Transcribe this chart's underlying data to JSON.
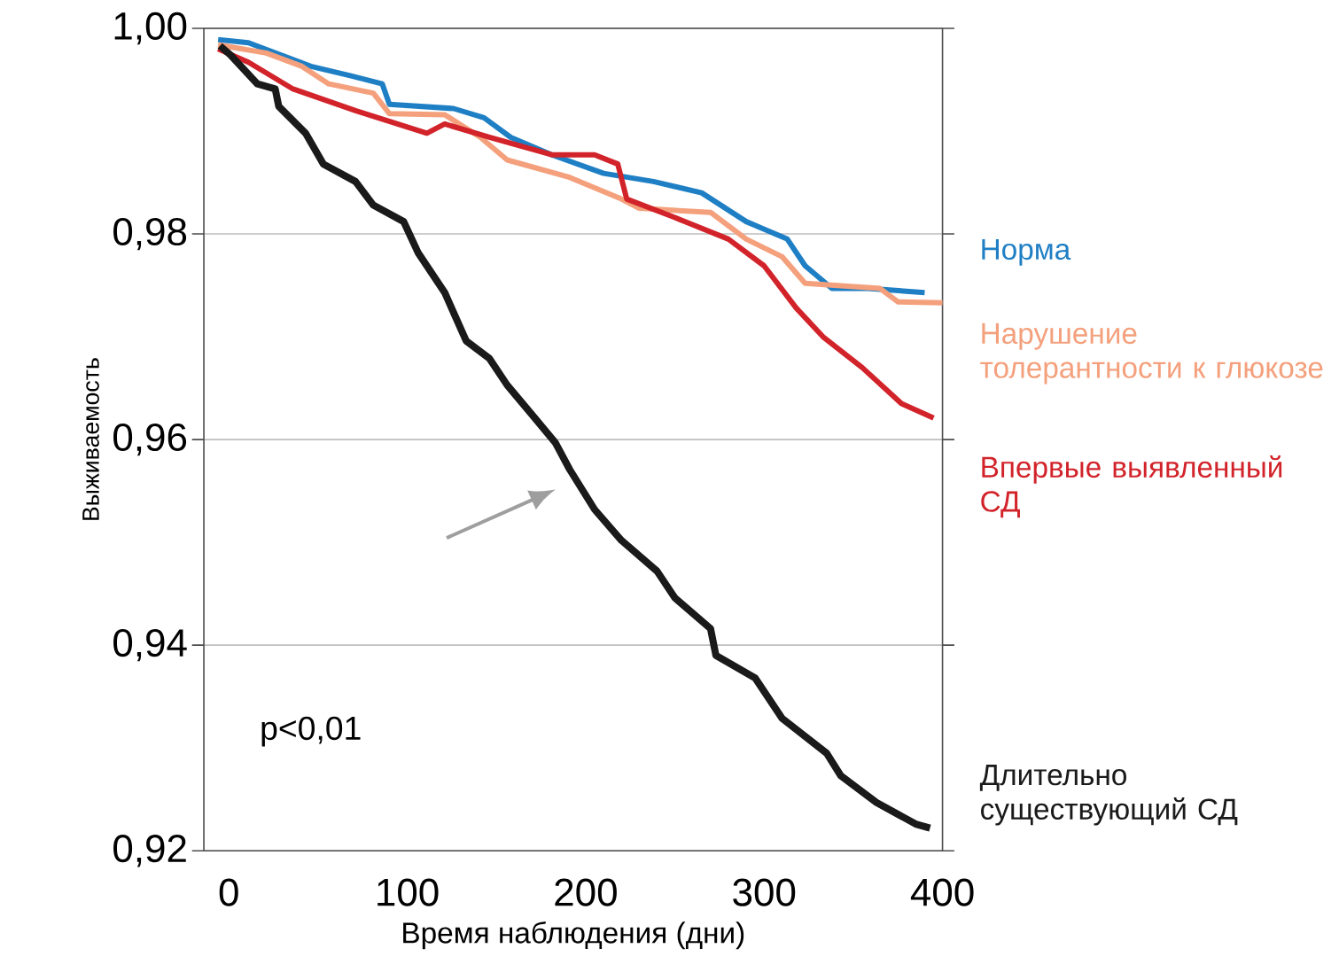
{
  "chart_data": {
    "type": "line",
    "xlabel": "Время наблюдения (дни)",
    "ylabel": "Выживаемость",
    "xlim": [
      -14,
      400
    ],
    "ylim": [
      0.92,
      1.0
    ],
    "xticks": [
      0,
      100,
      200,
      300,
      400
    ],
    "yticks": [
      {
        "value": 0.92,
        "label": "0,92"
      },
      {
        "value": 0.94,
        "label": "0,94"
      },
      {
        "value": 0.96,
        "label": "0,96"
      },
      {
        "value": 0.98,
        "label": "0,98"
      },
      {
        "value": 1.0,
        "label": "1,00"
      }
    ],
    "grid": "y",
    "legend": false,
    "marker": "none",
    "line_style": "solid",
    "annotations": [
      "p<0,01"
    ],
    "series": [
      {
        "name": "Норма",
        "color": "#1f7fc4",
        "x": [
          -6,
          11,
          46,
          68,
          86,
          90,
          126,
          143,
          158,
          181,
          210,
          238,
          265,
          290,
          313,
          323,
          338,
          358,
          390
        ],
        "values": [
          0.9989,
          0.9986,
          0.9963,
          0.9954,
          0.9946,
          0.9926,
          0.9922,
          0.9913,
          0.9894,
          0.9877,
          0.9859,
          0.9851,
          0.984,
          0.9812,
          0.9795,
          0.9769,
          0.9747,
          0.9747,
          0.9743
        ]
      },
      {
        "name": "Нарушение толерантности к глюкозе",
        "color": "#f4a07c",
        "x": [
          -6,
          21,
          41,
          56,
          81,
          90,
          121,
          141,
          156,
          191,
          220,
          230,
          270,
          290,
          310,
          323,
          365,
          375,
          400
        ],
        "values": [
          0.9984,
          0.9976,
          0.9963,
          0.9946,
          0.9937,
          0.9917,
          0.9916,
          0.9894,
          0.9872,
          0.9855,
          0.9834,
          0.9825,
          0.9821,
          0.9795,
          0.9778,
          0.9752,
          0.9747,
          0.9734,
          0.9733
        ]
      },
      {
        "name": "Впервые выявленный СД",
        "color": "#d2232a",
        "x": [
          -6,
          11,
          36,
          71,
          111,
          121,
          146,
          181,
          205,
          218,
          223,
          250,
          280,
          300,
          318,
          333,
          355,
          377,
          395
        ],
        "values": [
          0.998,
          0.9967,
          0.9941,
          0.992,
          0.9898,
          0.9907,
          0.9894,
          0.9877,
          0.9877,
          0.9868,
          0.9834,
          0.9816,
          0.9795,
          0.9769,
          0.9728,
          0.97,
          0.967,
          0.9635,
          0.9621
        ]
      },
      {
        "name": "Длительно существующий СД",
        "color": "#1a1a1a",
        "x": [
          -5,
          1,
          16,
          26,
          28,
          43,
          53,
          71,
          81,
          98,
          106,
          121,
          133,
          146,
          156,
          171,
          183,
          191,
          205,
          220,
          240,
          250,
          270,
          273,
          295,
          310,
          335,
          343,
          363,
          385,
          393
        ],
        "values": [
          0.9983,
          0.9974,
          0.9946,
          0.9941,
          0.9924,
          0.9898,
          0.9868,
          0.9851,
          0.9828,
          0.9812,
          0.9782,
          0.9743,
          0.9696,
          0.9679,
          0.9653,
          0.9622,
          0.9597,
          0.9571,
          0.9532,
          0.9502,
          0.9472,
          0.9446,
          0.9416,
          0.939,
          0.9368,
          0.9329,
          0.9295,
          0.9273,
          0.9247,
          0.9226,
          0.9222
        ]
      }
    ]
  }
}
